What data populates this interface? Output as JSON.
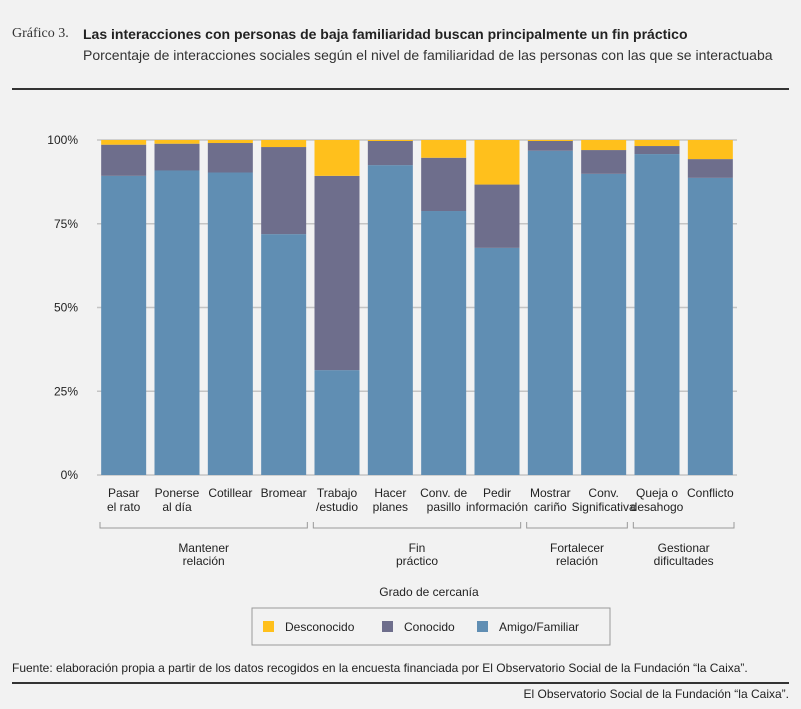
{
  "header": {
    "label": "Gráfico 3.",
    "title": "Las interacciones con personas de baja familiaridad buscan principalmente un fin práctico",
    "subtitle": "Porcentaje de interacciones sociales según el nivel de familiaridad de las personas con las que se interactuaba"
  },
  "source": "Fuente: elaboración propia a partir de los datos recogidos en la encuesta financiada por El Observatorio Social de la Fundación “la Caixa”.",
  "footer": "El Observatorio Social de la Fundación “la Caixa”.",
  "colors": {
    "Desconocido": "#ffc01c",
    "Conocido": "#6e6e8c",
    "Amigo/Familiar": "#608eb3"
  },
  "chart_data": {
    "type": "bar",
    "stacked": true,
    "xlabel": "Grado de cercanía",
    "ylabel": "",
    "ylim": [
      0,
      100
    ],
    "yticks": [
      "0%",
      "25%",
      "50%",
      "75%",
      "100%"
    ],
    "grid": true,
    "legend": "bottom",
    "categories": [
      [
        "Pasar",
        "el rato"
      ],
      [
        "Ponerse",
        "al día"
      ],
      [
        "Cotillear"
      ],
      [
        "Bromear"
      ],
      [
        "Trabajo",
        "/estudio"
      ],
      [
        "Hacer",
        "planes"
      ],
      [
        "Conv. de",
        "pasillo"
      ],
      [
        "Pedir",
        "información"
      ],
      [
        "Mostrar",
        "cariño"
      ],
      [
        "Conv.",
        "Significativa"
      ],
      [
        "Queja o",
        "desahogo"
      ],
      [
        "Conflicto"
      ]
    ],
    "groups": [
      {
        "label": [
          "Mantener",
          "relación"
        ],
        "from": 0,
        "to": 3
      },
      {
        "label": [
          "Fin",
          "práctico"
        ],
        "from": 4,
        "to": 7
      },
      {
        "label": [
          "Fortalecer",
          "relación"
        ],
        "from": 8,
        "to": 9
      },
      {
        "label": [
          "Gestionar",
          "dificultades"
        ],
        "from": 10,
        "to": 11
      }
    ],
    "series": [
      {
        "name": "Amigo/Familiar",
        "values": [
          89.3,
          90.9,
          90.3,
          71.9,
          31.3,
          92.5,
          78.8,
          67.8,
          96.8,
          89.9,
          95.8,
          88.7
        ]
      },
      {
        "name": "Conocido",
        "values": [
          9.3,
          8.0,
          8.8,
          26.0,
          58.0,
          7.2,
          15.9,
          18.9,
          2.9,
          7.1,
          2.4,
          5.6
        ]
      },
      {
        "name": "Desconocido",
        "values": [
          1.4,
          1.1,
          0.9,
          2.1,
          10.7,
          0.3,
          5.3,
          13.3,
          0.3,
          3.0,
          1.8,
          5.7
        ]
      }
    ],
    "legend_order": [
      "Desconocido",
      "Conocido",
      "Amigo/Familiar"
    ]
  }
}
